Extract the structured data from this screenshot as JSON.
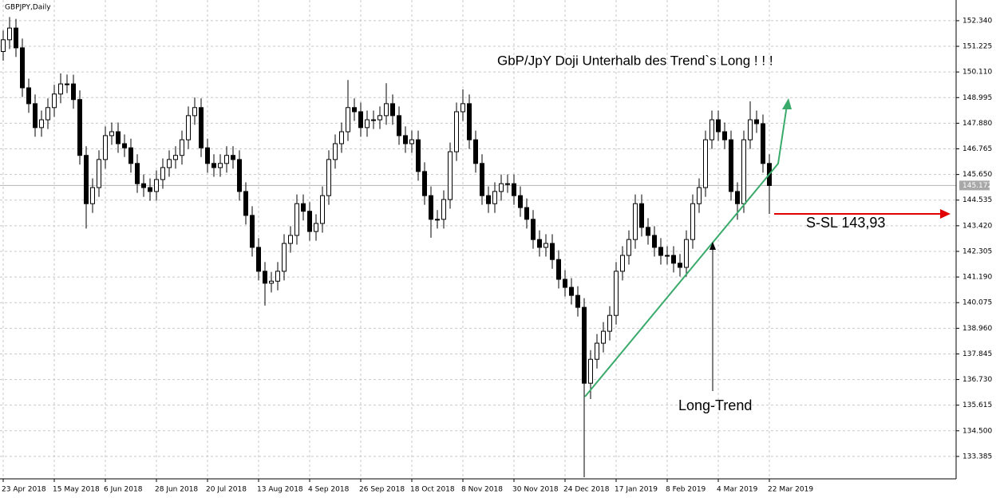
{
  "chart_data": {
    "type": "candlestick",
    "symbol": "GBPJPY,Daily",
    "title": "GbP/JpY Doji Unterhalb des Trend`s  Long ! ! !",
    "annotations": [
      "S-SL 143,93",
      "Long-Trend"
    ],
    "last_price": 145.172,
    "ylim": [
      132.41,
      153.24
    ],
    "yticks": [
      {
        "value": 152.34,
        "label": "152.340"
      },
      {
        "value": 151.225,
        "label": "151.225"
      },
      {
        "value": 150.11,
        "label": "150.110"
      },
      {
        "value": 148.995,
        "label": "148.995"
      },
      {
        "value": 147.88,
        "label": "147.880"
      },
      {
        "value": 146.765,
        "label": "146.765"
      },
      {
        "value": 145.65,
        "label": "145.650"
      },
      {
        "value": 144.535,
        "label": "144.535"
      },
      {
        "value": 143.42,
        "label": "143.420"
      },
      {
        "value": 142.305,
        "label": "142.305"
      },
      {
        "value": 141.19,
        "label": "141.190"
      },
      {
        "value": 140.075,
        "label": "140.075"
      },
      {
        "value": 138.96,
        "label": "138.960"
      },
      {
        "value": 137.845,
        "label": "137.845"
      },
      {
        "value": 136.73,
        "label": "136.730"
      },
      {
        "value": 135.615,
        "label": "135.615"
      },
      {
        "value": 134.5,
        "label": "134.500"
      },
      {
        "value": 133.385,
        "label": "133.385"
      }
    ],
    "xticks": [
      {
        "value": 0,
        "label": "23 Apr 2018"
      },
      {
        "value": 8,
        "label": "15 May 2018"
      },
      {
        "value": 16,
        "label": "6 Jun 2018"
      },
      {
        "value": 24,
        "label": "28 Jun 2018"
      },
      {
        "value": 32,
        "label": "20 Jul 2018"
      },
      {
        "value": 40,
        "label": "13 Aug 2018"
      },
      {
        "value": 48,
        "label": "4 Sep 2018"
      },
      {
        "value": 56,
        "label": "26 Sep 2018"
      },
      {
        "value": 64,
        "label": "18 Oct 2018"
      },
      {
        "value": 72,
        "label": "8 Nov 2018"
      },
      {
        "value": 80,
        "label": "30 Nov 2018"
      },
      {
        "value": 88,
        "label": "24 Dec 2018"
      },
      {
        "value": 96,
        "label": "17 Jan 2019"
      },
      {
        "value": 104,
        "label": "8 Feb 2019"
      },
      {
        "value": 112,
        "label": "4 Mar 2019"
      },
      {
        "value": 120,
        "label": "22 Mar 2019"
      }
    ],
    "grid": true,
    "colors": {
      "up": "#ffffff",
      "down": "#000000",
      "edge": "#000000"
    },
    "open": [
      151.0,
      151.51,
      152.02,
      151.16,
      149.42,
      148.73,
      147.69,
      148.03,
      148.56,
      149.15,
      149.59,
      149.59,
      148.91,
      146.48,
      144.38,
      145.08,
      146.3,
      147.34,
      147.51,
      146.99,
      146.81,
      146.13,
      145.25,
      145.08,
      144.91,
      145.43,
      145.95,
      146.3,
      146.48,
      147.16,
      148.21,
      148.56,
      146.81,
      146.13,
      145.95,
      146.13,
      146.48,
      146.3,
      144.91,
      143.87,
      142.48,
      141.44,
      140.92,
      141.01,
      141.44,
      142.65,
      143.0,
      144.38,
      144.05,
      143.17,
      143.52,
      144.73,
      146.3,
      146.99,
      147.51,
      148.56,
      148.38,
      147.69,
      148.03,
      148.03,
      148.21,
      148.73,
      148.21,
      147.34,
      146.99,
      147.16,
      145.78,
      144.73,
      143.7,
      143.7,
      144.56,
      146.64,
      148.38,
      148.73,
      147.16,
      146.13,
      144.73,
      144.38,
      144.91,
      145.25,
      145.25,
      144.73,
      144.21,
      143.7,
      142.82,
      142.48,
      142.65,
      141.95,
      141.09,
      140.74,
      140.39,
      139.87,
      136.57,
      137.61,
      138.31,
      138.83,
      139.52,
      141.44,
      142.13,
      142.82,
      144.38,
      143.35,
      143.0,
      142.48,
      142.13,
      142.13,
      141.79,
      141.61,
      142.82,
      144.38,
      145.08,
      147.16,
      148.03,
      147.51,
      147.16,
      144.91,
      144.38,
      147.16,
      148.03,
      147.86,
      146.13
    ],
    "high": [
      151.91,
      152.5,
      152.42,
      151.56,
      149.82,
      149.13,
      148.43,
      148.96,
      149.55,
      150.05,
      150.0,
      149.99,
      149.31,
      146.88,
      145.48,
      146.7,
      147.74,
      147.91,
      147.91,
      147.39,
      147.21,
      146.53,
      145.65,
      145.48,
      145.83,
      146.35,
      146.7,
      146.88,
      147.56,
      148.61,
      149.0,
      148.96,
      147.21,
      146.53,
      146.53,
      146.88,
      146.88,
      146.7,
      145.31,
      144.27,
      142.88,
      141.84,
      141.41,
      141.84,
      143.05,
      143.4,
      144.78,
      144.78,
      144.45,
      143.92,
      145.13,
      146.7,
      147.39,
      147.91,
      149.76,
      148.96,
      148.78,
      148.43,
      148.43,
      148.61,
      149.62,
      149.13,
      148.61,
      147.74,
      147.56,
      147.56,
      146.18,
      145.13,
      144.1,
      144.96,
      147.04,
      148.78,
      149.35,
      149.13,
      147.56,
      146.53,
      145.13,
      145.31,
      145.65,
      145.65,
      145.65,
      145.13,
      144.61,
      144.1,
      143.22,
      143.05,
      143.05,
      142.35,
      141.49,
      141.14,
      140.79,
      140.27,
      138.01,
      138.71,
      139.23,
      139.92,
      141.84,
      142.53,
      143.22,
      144.78,
      144.78,
      143.75,
      143.4,
      142.88,
      142.53,
      142.53,
      142.19,
      143.22,
      144.78,
      145.48,
      147.56,
      148.43,
      148.43,
      147.91,
      147.56,
      145.31,
      147.56,
      148.83,
      148.43,
      148.26,
      146.53
    ],
    "low": [
      150.6,
      151.11,
      150.76,
      149.02,
      148.33,
      147.29,
      147.29,
      147.63,
      148.16,
      148.75,
      149.19,
      148.51,
      146.08,
      143.3,
      143.98,
      144.68,
      145.9,
      146.94,
      146.59,
      146.41,
      145.73,
      144.85,
      144.68,
      144.51,
      144.51,
      145.03,
      145.55,
      145.9,
      146.08,
      146.76,
      147.81,
      146.41,
      145.73,
      145.55,
      145.55,
      145.73,
      145.9,
      144.51,
      143.47,
      142.08,
      141.04,
      139.95,
      140.52,
      140.61,
      141.04,
      142.25,
      142.6,
      143.65,
      142.77,
      142.77,
      143.12,
      144.33,
      145.9,
      146.59,
      147.11,
      147.98,
      147.29,
      147.29,
      147.63,
      147.63,
      147.81,
      147.81,
      146.94,
      146.59,
      146.59,
      145.38,
      144.33,
      142.9,
      143.3,
      143.3,
      144.16,
      146.24,
      147.98,
      146.76,
      145.73,
      144.33,
      143.98,
      143.98,
      144.51,
      144.85,
      144.33,
      143.81,
      143.3,
      142.42,
      142.08,
      142.08,
      141.55,
      140.69,
      140.34,
      139.99,
      139.47,
      132.48,
      135.88,
      137.21,
      137.91,
      138.43,
      139.12,
      141.04,
      141.73,
      142.42,
      142.95,
      142.6,
      142.08,
      141.73,
      141.73,
      141.39,
      141.21,
      141.21,
      142.42,
      143.98,
      144.68,
      146.76,
      147.11,
      146.76,
      144.51,
      143.68,
      143.98,
      146.76,
      147.46,
      145.73,
      143.93
    ],
    "close": [
      151.51,
      152.02,
      151.16,
      149.42,
      148.73,
      147.69,
      148.03,
      148.56,
      149.15,
      149.59,
      149.59,
      148.91,
      146.48,
      144.38,
      145.08,
      146.3,
      147.34,
      147.51,
      146.99,
      146.81,
      146.13,
      145.25,
      145.08,
      144.91,
      145.43,
      145.95,
      146.3,
      146.48,
      147.16,
      148.21,
      148.56,
      146.81,
      146.13,
      145.95,
      146.13,
      146.48,
      146.3,
      144.91,
      143.87,
      142.48,
      141.44,
      140.92,
      141.01,
      141.44,
      142.65,
      143.0,
      144.38,
      144.05,
      143.17,
      143.52,
      144.73,
      146.3,
      146.99,
      147.51,
      148.56,
      148.38,
      147.69,
      148.03,
      148.03,
      148.21,
      148.73,
      148.21,
      147.34,
      146.99,
      147.16,
      145.78,
      144.73,
      143.7,
      143.7,
      144.56,
      146.64,
      148.38,
      148.73,
      147.16,
      146.13,
      144.73,
      144.38,
      144.91,
      145.25,
      145.25,
      144.73,
      144.21,
      143.7,
      142.82,
      142.48,
      142.65,
      141.95,
      141.09,
      140.74,
      140.39,
      139.87,
      136.57,
      137.61,
      138.31,
      138.83,
      139.52,
      141.44,
      142.13,
      142.82,
      144.38,
      143.35,
      143.0,
      142.48,
      142.13,
      142.13,
      141.79,
      141.61,
      142.82,
      144.38,
      145.08,
      147.16,
      148.03,
      147.51,
      147.16,
      144.91,
      144.38,
      147.16,
      148.03,
      147.86,
      146.13,
      145.17
    ]
  }
}
